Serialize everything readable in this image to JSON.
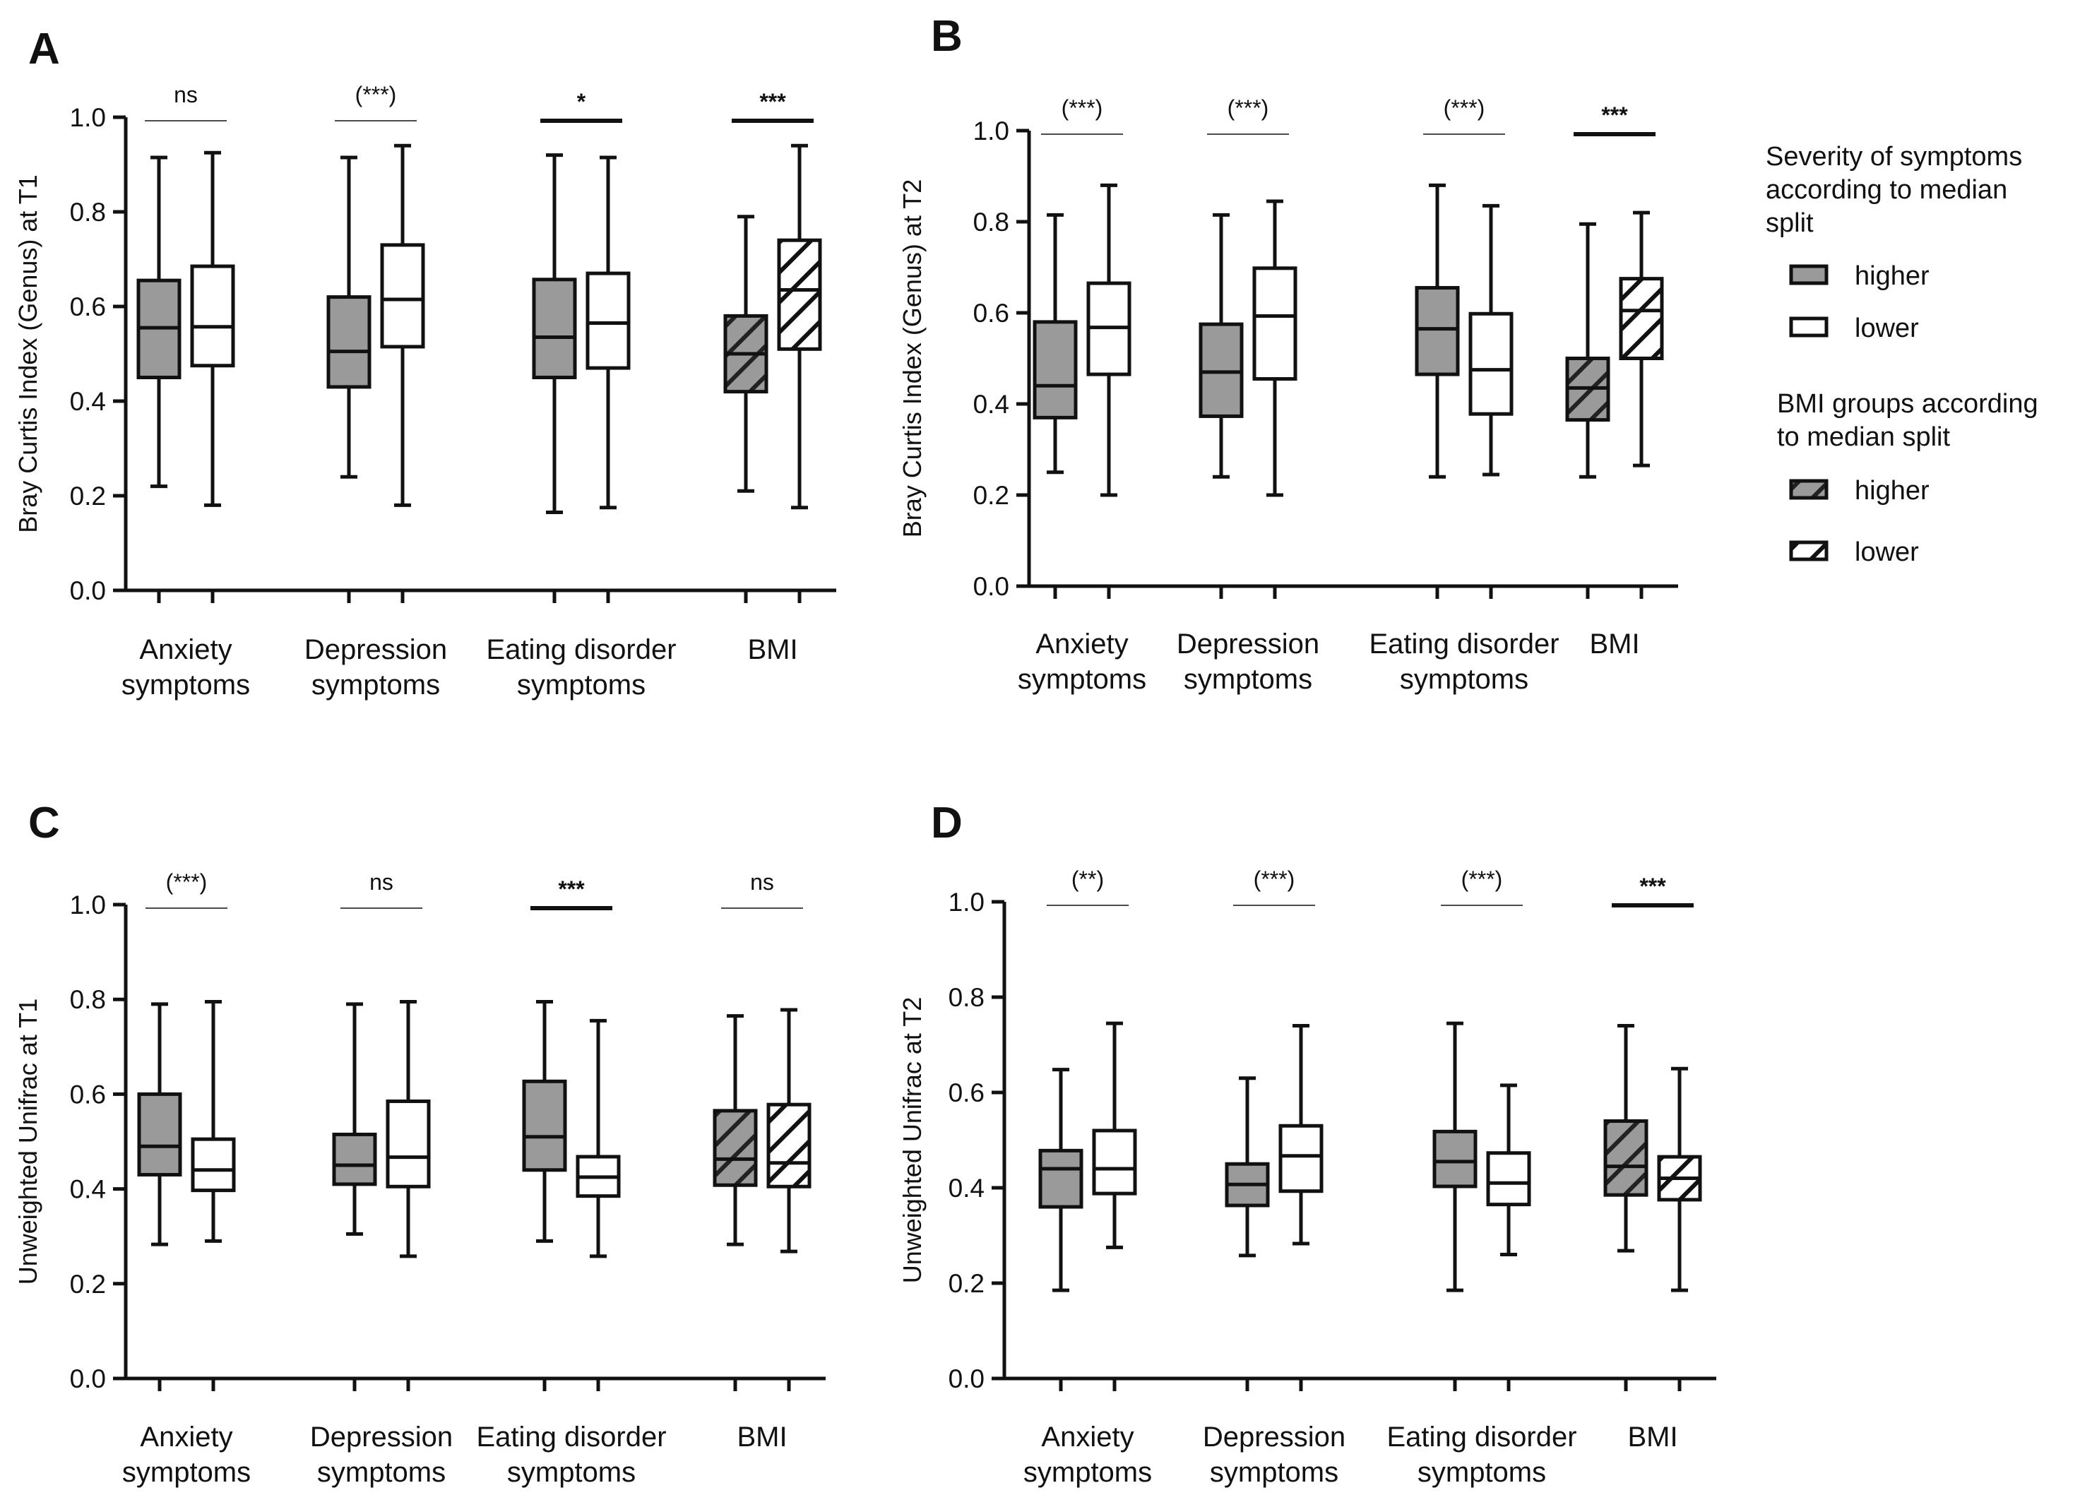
{
  "colors": {
    "higher_fill": "#9a9a9a",
    "lower_fill": "#ffffff",
    "stroke": "#111111",
    "hatch_stroke": "#222222"
  },
  "legend": {
    "symptoms_title": [
      "Severity of symptoms",
      "according to median",
      "split"
    ],
    "symptoms_higher": "higher",
    "symptoms_lower": "lower",
    "bmi_title": [
      "BMI groups according",
      "to median split"
    ],
    "bmi_higher": "higher",
    "bmi_lower": "lower"
  },
  "chart_data": [
    {
      "panel": "A",
      "type": "box",
      "ylabel": "Bray Curtis Index (Genus) at T1",
      "ylim": [
        0,
        1.0
      ],
      "yticks": [
        "0.0",
        "0.2",
        "0.4",
        "0.6",
        "0.8",
        "1.0"
      ],
      "categories": [
        {
          "label": [
            "Anxiety",
            "symptoms"
          ],
          "significance": "ns",
          "sig_bold": false,
          "boxes": [
            {
              "group": "higher",
              "pattern": "solid",
              "min": 0.22,
              "q1": 0.45,
              "median": 0.555,
              "q3": 0.655,
              "max": 0.915
            },
            {
              "group": "lower",
              "pattern": "solid",
              "min": 0.18,
              "q1": 0.475,
              "median": 0.557,
              "q3": 0.685,
              "max": 0.925
            }
          ]
        },
        {
          "label": [
            "Depression",
            "symptoms"
          ],
          "significance": "(***)",
          "sig_bold": false,
          "boxes": [
            {
              "group": "higher",
              "pattern": "solid",
              "min": 0.24,
              "q1": 0.43,
              "median": 0.505,
              "q3": 0.62,
              "max": 0.915
            },
            {
              "group": "lower",
              "pattern": "solid",
              "min": 0.18,
              "q1": 0.515,
              "median": 0.615,
              "q3": 0.73,
              "max": 0.94
            }
          ]
        },
        {
          "label": [
            "Eating disorder",
            "symptoms"
          ],
          "significance": "*",
          "sig_bold": true,
          "boxes": [
            {
              "group": "higher",
              "pattern": "solid",
              "min": 0.165,
              "q1": 0.45,
              "median": 0.535,
              "q3": 0.657,
              "max": 0.92
            },
            {
              "group": "lower",
              "pattern": "solid",
              "min": 0.175,
              "q1": 0.47,
              "median": 0.565,
              "q3": 0.67,
              "max": 0.915
            }
          ]
        },
        {
          "label": [
            "BMI"
          ],
          "significance": "***",
          "sig_bold": true,
          "boxes": [
            {
              "group": "higher",
              "pattern": "hatch",
              "min": 0.21,
              "q1": 0.42,
              "median": 0.5,
              "q3": 0.58,
              "max": 0.79
            },
            {
              "group": "lower",
              "pattern": "hatch",
              "min": 0.175,
              "q1": 0.51,
              "median": 0.635,
              "q3": 0.74,
              "max": 0.94
            }
          ]
        }
      ]
    },
    {
      "panel": "B",
      "type": "box",
      "ylabel": "Bray Curtis Index (Genus) at T2",
      "ylim": [
        0,
        1.0
      ],
      "yticks": [
        "0.0",
        "0.2",
        "0.4",
        "0.6",
        "0.8",
        "1.0"
      ],
      "categories": [
        {
          "label": [
            "Anxiety",
            "symptoms"
          ],
          "significance": "(***)",
          "sig_bold": false,
          "boxes": [
            {
              "group": "higher",
              "pattern": "solid",
              "min": 0.25,
              "q1": 0.37,
              "median": 0.44,
              "q3": 0.58,
              "max": 0.815
            },
            {
              "group": "lower",
              "pattern": "solid",
              "min": 0.2,
              "q1": 0.465,
              "median": 0.568,
              "q3": 0.665,
              "max": 0.88
            }
          ]
        },
        {
          "label": [
            "Depression",
            "symptoms"
          ],
          "significance": "(***)",
          "sig_bold": false,
          "boxes": [
            {
              "group": "higher",
              "pattern": "solid",
              "min": 0.24,
              "q1": 0.373,
              "median": 0.47,
              "q3": 0.575,
              "max": 0.815
            },
            {
              "group": "lower",
              "pattern": "solid",
              "min": 0.2,
              "q1": 0.455,
              "median": 0.593,
              "q3": 0.698,
              "max": 0.845
            }
          ]
        },
        {
          "label": [
            "Eating disorder",
            "symptoms"
          ],
          "significance": "(***)",
          "sig_bold": false,
          "boxes": [
            {
              "group": "higher",
              "pattern": "solid",
              "min": 0.24,
              "q1": 0.465,
              "median": 0.565,
              "q3": 0.655,
              "max": 0.88
            },
            {
              "group": "lower",
              "pattern": "solid",
              "min": 0.245,
              "q1": 0.378,
              "median": 0.475,
              "q3": 0.598,
              "max": 0.835
            }
          ]
        },
        {
          "label": [
            "BMI"
          ],
          "significance": "***",
          "sig_bold": true,
          "boxes": [
            {
              "group": "higher",
              "pattern": "hatch",
              "min": 0.24,
              "q1": 0.365,
              "median": 0.435,
              "q3": 0.5,
              "max": 0.795
            },
            {
              "group": "lower",
              "pattern": "hatch",
              "min": 0.265,
              "q1": 0.5,
              "median": 0.605,
              "q3": 0.675,
              "max": 0.82
            }
          ]
        }
      ]
    },
    {
      "panel": "C",
      "type": "box",
      "ylabel": "Unweighted Unifrac at T1",
      "ylim": [
        0,
        1.0
      ],
      "yticks": [
        "0.0",
        "0.2",
        "0.4",
        "0.6",
        "0.8",
        "1.0"
      ],
      "categories": [
        {
          "label": [
            "Anxiety",
            "symptoms"
          ],
          "significance": "(***)",
          "sig_bold": false,
          "boxes": [
            {
              "group": "higher",
              "pattern": "solid",
              "min": 0.283,
              "q1": 0.43,
              "median": 0.49,
              "q3": 0.6,
              "max": 0.79
            },
            {
              "group": "lower",
              "pattern": "solid",
              "min": 0.29,
              "q1": 0.397,
              "median": 0.44,
              "q3": 0.505,
              "max": 0.795
            }
          ]
        },
        {
          "label": [
            "Depression",
            "symptoms"
          ],
          "significance": "ns",
          "sig_bold": false,
          "boxes": [
            {
              "group": "higher",
              "pattern": "solid",
              "min": 0.305,
              "q1": 0.41,
              "median": 0.45,
              "q3": 0.515,
              "max": 0.79
            },
            {
              "group": "lower",
              "pattern": "solid",
              "min": 0.258,
              "q1": 0.405,
              "median": 0.467,
              "q3": 0.585,
              "max": 0.795
            }
          ]
        },
        {
          "label": [
            "Eating disorder",
            "symptoms"
          ],
          "significance": "***",
          "sig_bold": true,
          "boxes": [
            {
              "group": "higher",
              "pattern": "solid",
              "min": 0.29,
              "q1": 0.44,
              "median": 0.51,
              "q3": 0.627,
              "max": 0.795
            },
            {
              "group": "lower",
              "pattern": "solid",
              "min": 0.258,
              "q1": 0.385,
              "median": 0.425,
              "q3": 0.468,
              "max": 0.755
            }
          ]
        },
        {
          "label": [
            "BMI"
          ],
          "significance": "ns",
          "sig_bold": false,
          "boxes": [
            {
              "group": "higher",
              "pattern": "hatch",
              "min": 0.283,
              "q1": 0.408,
              "median": 0.463,
              "q3": 0.565,
              "max": 0.765
            },
            {
              "group": "lower",
              "pattern": "hatch",
              "min": 0.268,
              "q1": 0.405,
              "median": 0.455,
              "q3": 0.578,
              "max": 0.778
            }
          ]
        }
      ]
    },
    {
      "panel": "D",
      "type": "box",
      "ylabel": "Unweighted Unifrac at T2",
      "ylim": [
        0,
        1.0
      ],
      "yticks": [
        "0.0",
        "0.2",
        "0.4",
        "0.6",
        "0.8",
        "1.0"
      ],
      "categories": [
        {
          "label": [
            "Anxiety",
            "symptoms"
          ],
          "significance": "(**)",
          "sig_bold": false,
          "boxes": [
            {
              "group": "higher",
              "pattern": "solid",
              "min": 0.185,
              "q1": 0.36,
              "median": 0.44,
              "q3": 0.478,
              "max": 0.648
            },
            {
              "group": "lower",
              "pattern": "solid",
              "min": 0.275,
              "q1": 0.388,
              "median": 0.44,
              "q3": 0.52,
              "max": 0.745
            }
          ]
        },
        {
          "label": [
            "Depression",
            "symptoms"
          ],
          "significance": "(***)",
          "sig_bold": false,
          "boxes": [
            {
              "group": "higher",
              "pattern": "solid",
              "min": 0.258,
              "q1": 0.363,
              "median": 0.407,
              "q3": 0.45,
              "max": 0.63
            },
            {
              "group": "lower",
              "pattern": "solid",
              "min": 0.283,
              "q1": 0.393,
              "median": 0.467,
              "q3": 0.53,
              "max": 0.74
            }
          ]
        },
        {
          "label": [
            "Eating disorder",
            "symptoms"
          ],
          "significance": "(***)",
          "sig_bold": false,
          "boxes": [
            {
              "group": "higher",
              "pattern": "solid",
              "min": 0.185,
              "q1": 0.403,
              "median": 0.455,
              "q3": 0.518,
              "max": 0.745
            },
            {
              "group": "lower",
              "pattern": "solid",
              "min": 0.26,
              "q1": 0.365,
              "median": 0.41,
              "q3": 0.473,
              "max": 0.615
            }
          ]
        },
        {
          "label": [
            "BMI"
          ],
          "significance": "***",
          "sig_bold": true,
          "boxes": [
            {
              "group": "higher",
              "pattern": "hatch",
              "min": 0.268,
              "q1": 0.385,
              "median": 0.445,
              "q3": 0.54,
              "max": 0.74
            },
            {
              "group": "lower",
              "pattern": "hatch",
              "min": 0.185,
              "q1": 0.375,
              "median": 0.42,
              "q3": 0.465,
              "max": 0.65
            }
          ]
        }
      ]
    }
  ]
}
